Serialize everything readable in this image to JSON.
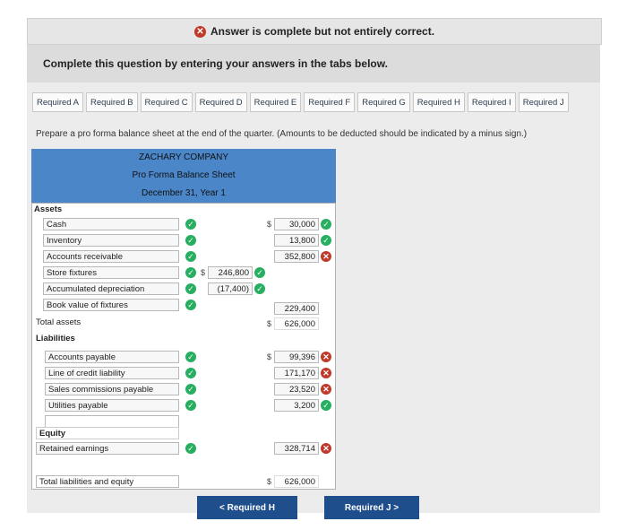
{
  "banner": {
    "text": "Answer is complete but not entirely correct."
  },
  "instruction": "Complete this question by entering your answers in the tabs below.",
  "tabs": [
    "Required A",
    "Required B",
    "Required C",
    "Required D",
    "Required E",
    "Required F",
    "Required G",
    "Required H",
    "Required I",
    "Required J"
  ],
  "prompt": "Prepare a pro forma balance sheet at the end of the quarter. (Amounts to be deducted should be indicated by a minus sign.)",
  "header": {
    "company": "ZACHARY COMPANY",
    "title": "Pro Forma Balance Sheet",
    "date": "December 31, Year 1"
  },
  "sections": {
    "assets": "Assets",
    "liabilities": "Liabilities",
    "equity": "Equity"
  },
  "assets": {
    "cash": {
      "label": "Cash",
      "value": "30,000"
    },
    "inventory": {
      "label": "Inventory",
      "value": "13,800"
    },
    "receivable": {
      "label": "Accounts receivable",
      "value": "352,800"
    },
    "fixtures": {
      "label": "Store fixtures",
      "value": "246,800"
    },
    "depreciation": {
      "label": "Accumulated depreciation",
      "value": "(17,400)"
    },
    "book_value": {
      "label": "Book value of fixtures",
      "value": "229,400"
    },
    "total": {
      "label": "Total assets",
      "value": "626,000"
    }
  },
  "liabilities": {
    "payable": {
      "label": "Accounts payable",
      "value": "99,396"
    },
    "credit": {
      "label": "Line of credit liability",
      "value": "171,170"
    },
    "commissions": {
      "label": "Sales commissions payable",
      "value": "23,520"
    },
    "utilities": {
      "label": "Utilities payable",
      "value": "3,200"
    }
  },
  "equity": {
    "retained": {
      "label": "Retained earnings",
      "value": "328,714"
    }
  },
  "total_le": {
    "label": "Total liabilities and equity",
    "value": "626,000"
  },
  "dollar": "$",
  "nav": {
    "prev": "< Required H",
    "next": "Required J >"
  }
}
